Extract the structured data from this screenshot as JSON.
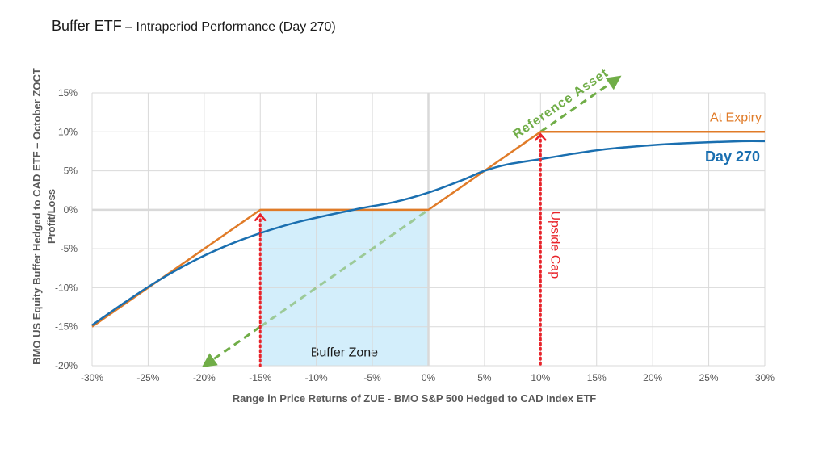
{
  "title": {
    "main": "Buffer ETF",
    "sub": " – Intraperiod Performance (Day 270)"
  },
  "colors": {
    "at_expiry": "#E07B28",
    "day_270": "#1A6FB0",
    "reference_asset": "#70AD47",
    "upside_cap": "#E8232A",
    "buffer_zone_fill": "#D3EEFB",
    "grid": "#D9D9D9"
  },
  "chart_data": {
    "type": "line",
    "xlabel": "Range in Price Returns of ZUE - BMO S&P 500 Hedged to CAD Index ETF",
    "ylabel_line1": "BMO US Equity Buffer Hedged to CAD ETF – October ZOCT",
    "ylabel_line2": "Profit/Loss",
    "xlim": [
      -30,
      30
    ],
    "ylim": [
      -20,
      15
    ],
    "x_ticks": [
      "-30%",
      "-25%",
      "-20%",
      "-15%",
      "-10%",
      "-5%",
      "0%",
      "5%",
      "10%",
      "15%",
      "20%",
      "25%",
      "30%"
    ],
    "x_tick_values": [
      -30,
      -25,
      -20,
      -15,
      -10,
      -5,
      0,
      5,
      10,
      15,
      20,
      25,
      30
    ],
    "y_ticks": [
      "15%",
      "10%",
      "5%",
      "0%",
      "-5%",
      "-10%",
      "-15%",
      "-20%"
    ],
    "y_tick_values": [
      15,
      10,
      5,
      0,
      -5,
      -10,
      -15,
      -20
    ],
    "grid": true,
    "series": [
      {
        "name": "At Expiry",
        "x": [
          -30,
          -15,
          0,
          10,
          30
        ],
        "y": [
          -15,
          0,
          0,
          10,
          10
        ]
      },
      {
        "name": "Day 270",
        "x": [
          -30,
          -27,
          -24,
          -21,
          -18,
          -15,
          -12,
          -9,
          -6,
          -3,
          0,
          3,
          5,
          7,
          10,
          13,
          16,
          20,
          24,
          28,
          30
        ],
        "y": [
          -14.8,
          -11.8,
          -9.0,
          -6.6,
          -4.6,
          -3.0,
          -1.7,
          -0.7,
          0.2,
          1.0,
          2.2,
          3.8,
          5.0,
          5.8,
          6.5,
          7.2,
          7.8,
          8.3,
          8.6,
          8.8,
          8.8
        ]
      }
    ],
    "reference_asset": {
      "label": "Reference Asset",
      "from": [
        -20,
        -20
      ],
      "to": [
        17,
        17
      ]
    },
    "upside_cap": {
      "label": "Upside Cap",
      "x": 10,
      "y": 10
    },
    "buffer_zone": {
      "label": "Buffer Zone",
      "x_range": [
        -15,
        0
      ],
      "y_range": [
        -20,
        0
      ]
    },
    "buffer_marker": {
      "x": -15,
      "y": 0
    }
  }
}
